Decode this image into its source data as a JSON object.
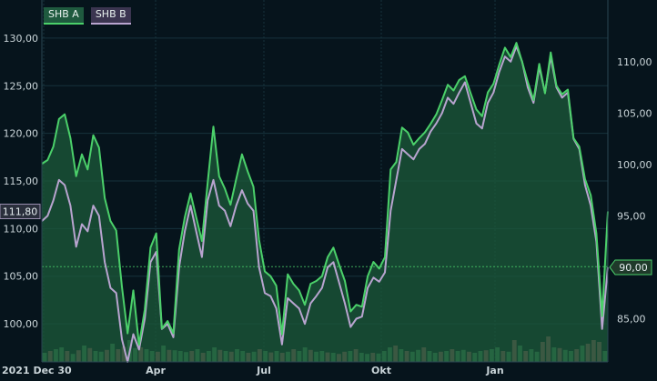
{
  "legend": {
    "series_a": "SHB A",
    "series_b": "SHB B"
  },
  "chart_data": {
    "type": "line",
    "subtype": "area + volume",
    "x_ticks": [
      "2021 Dec 30",
      "Apr",
      "Jul",
      "Okt",
      "Jan"
    ],
    "left_axis": {
      "ticks": [
        "130,00",
        "125,00",
        "120,00",
        "115,00",
        "110,00",
        "105,00",
        "100,00"
      ],
      "ylim": [
        96.0,
        134.0
      ]
    },
    "right_axis": {
      "ticks": [
        "110,00",
        "105,00",
        "100,00",
        "95,00",
        "90,00",
        "85,00"
      ],
      "ylim": [
        80.8,
        116.0
      ]
    },
    "current_labels": {
      "series_a_last": "111,80",
      "series_b_last": "90,00"
    },
    "reference_line": {
      "value": 106.0
    },
    "colors": {
      "series_a": "#4bd06a",
      "series_b": "#b8a4cf",
      "area_fill": "#1c5a3a",
      "background": "#06141c",
      "grid": "#17323c",
      "volume_up": "#4e9a64",
      "volume_down": "#b0616a"
    },
    "series": [
      {
        "name": "SHB A",
        "axis": "left",
        "values": [
          116.8,
          117.2,
          118.6,
          121.5,
          122.0,
          119.5,
          115.5,
          117.8,
          116.2,
          119.8,
          118.5,
          113.2,
          110.8,
          109.8,
          103.9,
          99.0,
          103.5,
          97.8,
          101.5,
          108.0,
          109.5,
          99.5,
          100.3,
          99.0,
          107.8,
          111.2,
          113.7,
          111.2,
          108.7,
          114.8,
          120.7,
          115.5,
          114.2,
          112.5,
          115.2,
          117.8,
          116.0,
          114.4,
          108.8,
          105.5,
          105.0,
          104.0,
          98.9,
          105.2,
          104.2,
          103.5,
          102.0,
          104.2,
          104.5,
          105.0,
          107.0,
          108.0,
          106.2,
          104.5,
          101.3,
          102.0,
          101.8,
          105.0,
          106.5,
          105.8,
          107.0,
          116.2,
          117.0,
          120.6,
          120.1,
          118.8,
          119.5,
          120.1,
          121.0,
          122.0,
          123.5,
          125.1,
          124.5,
          125.6,
          126.0,
          124.2,
          122.5,
          121.8,
          124.3,
          125.2,
          127.2,
          129.0,
          128.0,
          129.5,
          127.5,
          125.4,
          123.5,
          127.3,
          124.2,
          128.5,
          125.0,
          124.1,
          124.6,
          119.5,
          118.6,
          115.2,
          113.5,
          109.5,
          100.8,
          111.8
        ]
      },
      {
        "name": "SHB B",
        "axis": "right",
        "values": [
          94.5,
          95.0,
          96.5,
          98.5,
          98.0,
          96.0,
          92.0,
          94.2,
          93.5,
          96.0,
          95.0,
          90.5,
          88.0,
          87.5,
          83.0,
          80.8,
          83.5,
          82.0,
          85.0,
          90.5,
          91.5,
          84.0,
          84.5,
          83.2,
          90.0,
          93.5,
          96.0,
          93.5,
          91.0,
          96.5,
          98.5,
          96.0,
          95.5,
          94.0,
          96.0,
          97.5,
          96.2,
          95.5,
          90.0,
          87.5,
          87.2,
          86.0,
          82.5,
          87.0,
          86.5,
          86.0,
          84.5,
          86.5,
          87.2,
          88.0,
          90.0,
          90.5,
          88.5,
          86.5,
          84.2,
          85.0,
          85.2,
          88.0,
          89.0,
          88.6,
          89.5,
          95.5,
          98.5,
          101.5,
          101.0,
          100.5,
          101.5,
          102.0,
          103.2,
          104.0,
          105.0,
          106.5,
          105.9,
          107.0,
          108.0,
          106.0,
          104.0,
          103.5,
          106.0,
          107.0,
          109.0,
          110.5,
          110.0,
          111.5,
          110.0,
          107.5,
          106.0,
          109.5,
          107.0,
          110.5,
          107.5,
          106.5,
          107.0,
          102.5,
          101.5,
          98.0,
          96.0,
          92.5,
          84.0,
          90.0
        ]
      }
    ],
    "volume": {
      "values": [
        0.25,
        0.3,
        0.35,
        0.4,
        0.3,
        0.22,
        0.32,
        0.45,
        0.38,
        0.3,
        0.28,
        0.33,
        0.5,
        0.35,
        0.42,
        0.6,
        0.38,
        0.4,
        0.35,
        0.3,
        0.28,
        0.45,
        0.33,
        0.32,
        0.3,
        0.27,
        0.3,
        0.35,
        0.25,
        0.3,
        0.4,
        0.33,
        0.3,
        0.28,
        0.35,
        0.3,
        0.25,
        0.28,
        0.35,
        0.3,
        0.26,
        0.3,
        0.25,
        0.28,
        0.35,
        0.3,
        0.4,
        0.33,
        0.28,
        0.3,
        0.26,
        0.25,
        0.22,
        0.28,
        0.3,
        0.35,
        0.25,
        0.22,
        0.25,
        0.23,
        0.3,
        0.4,
        0.45,
        0.35,
        0.3,
        0.28,
        0.33,
        0.4,
        0.3,
        0.25,
        0.28,
        0.3,
        0.35,
        0.3,
        0.33,
        0.28,
        0.25,
        0.3,
        0.32,
        0.35,
        0.4,
        0.3,
        0.28,
        0.6,
        0.45,
        0.3,
        0.35,
        0.28,
        0.55,
        0.7,
        0.4,
        0.38,
        0.33,
        0.3,
        0.35,
        0.45,
        0.5,
        0.6,
        0.55,
        0.3
      ],
      "up": [
        true,
        false,
        true,
        true,
        false,
        true,
        false,
        true,
        false,
        true,
        true,
        false,
        true,
        false,
        false,
        true,
        true,
        false,
        true,
        true,
        false,
        true,
        false,
        true,
        true,
        true,
        false,
        true,
        false,
        true,
        true,
        false,
        true,
        false,
        true,
        true,
        false,
        true,
        false,
        true,
        false,
        true,
        false,
        true,
        false,
        true,
        true,
        false,
        true,
        true,
        false,
        true,
        false,
        false,
        true,
        false,
        true,
        true,
        false,
        true,
        true,
        true,
        false,
        true,
        false,
        true,
        true,
        false,
        true,
        true,
        false,
        true,
        false,
        true,
        true,
        false,
        true,
        true,
        false,
        true,
        true,
        false,
        true,
        false,
        true,
        false,
        true,
        true,
        false,
        false,
        true,
        false,
        true,
        true,
        false,
        true,
        false,
        false,
        false,
        true
      ]
    },
    "grid": true,
    "legend_position": "top-left"
  }
}
